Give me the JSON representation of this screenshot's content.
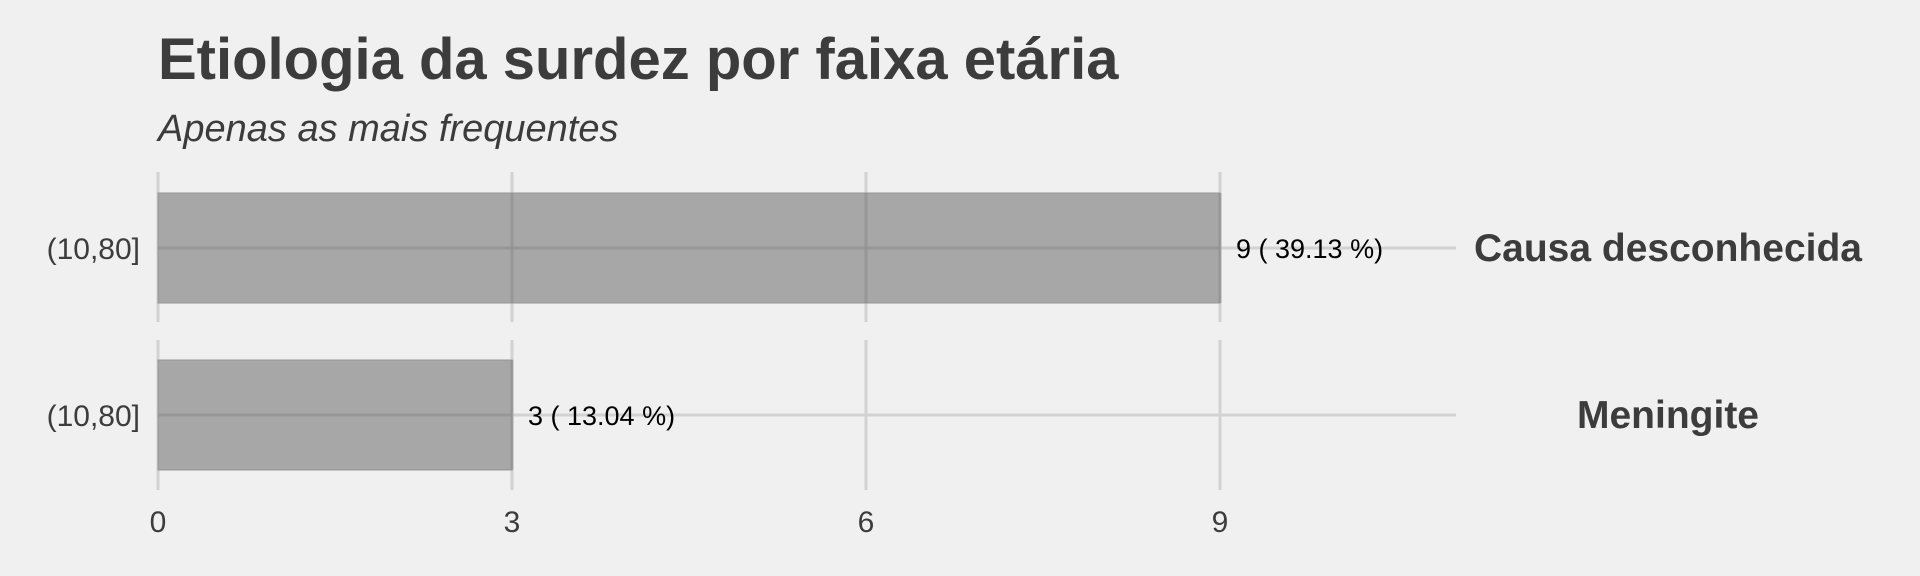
{
  "chart_data": {
    "type": "bar",
    "orientation": "horizontal",
    "faceted": true,
    "title": "Etiologia da surdez por faixa etária",
    "subtitle": "Apenas as mais frequentes",
    "xlabel": "",
    "ylabel": "",
    "xlim": [
      0,
      11
    ],
    "x_ticks": [
      0,
      3,
      6,
      9
    ],
    "grid": true,
    "legend": "none",
    "bar_color": "#a2a2a2",
    "panels": [
      {
        "facet_label": "Causa desconhecida",
        "category": "(10,80]",
        "value": 9,
        "label": "9 ( 39.13 %)"
      },
      {
        "facet_label": "Meningite",
        "category": "(10,80]",
        "value": 3,
        "label": "3 ( 13.04 %)"
      }
    ]
  },
  "colors": {
    "background": "#f0f0f0",
    "grid": "#d2d2d2",
    "bar": "#a2a2a2",
    "text": "#3c3c3c",
    "value_label": "#000000"
  }
}
